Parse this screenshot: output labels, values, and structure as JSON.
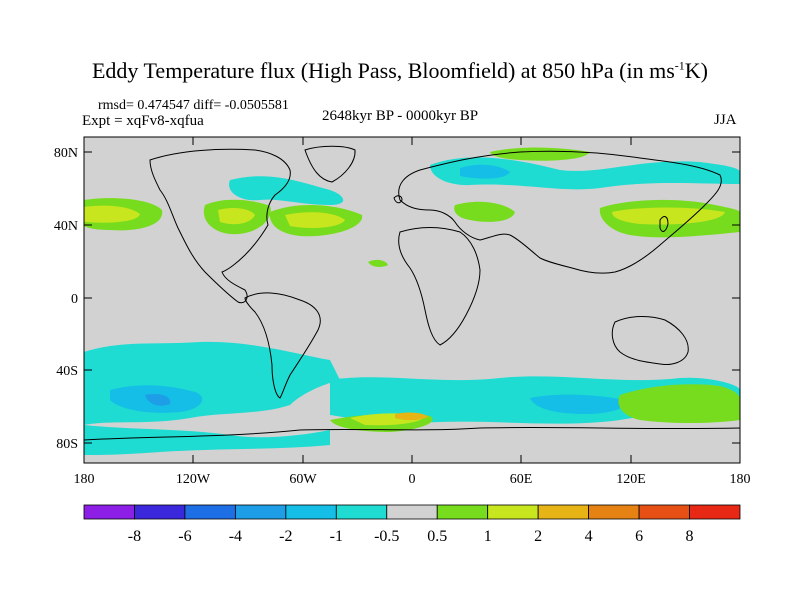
{
  "header": {
    "title_main": "Eddy Temperature flux (High Pass, Bloomfield) at 850 hPa (in ms",
    "title_sup": "-1",
    "title_end": "K)",
    "rmsd_line": "rmsd= 0.474547 diff= -0.0505581",
    "expt_line": "Expt = xqFv8-xqfua",
    "period": "2648kyr BP - 0000kyr BP",
    "season": "JJA"
  },
  "axes": {
    "lat_labels": [
      "80N",
      "40N",
      "0",
      "40S",
      "80S"
    ],
    "lon_labels": [
      "180",
      "120W",
      "60W",
      "0",
      "60E",
      "120E",
      "180"
    ]
  },
  "colorbar": {
    "labels": [
      "-8",
      "-6",
      "-4",
      "-2",
      "-1",
      "-0.5",
      "0.5",
      "1",
      "2",
      "4",
      "6",
      "8"
    ],
    "colors": [
      "#8c1ee6",
      "#3c28dc",
      "#1e6ee6",
      "#1e9ee6",
      "#14bee6",
      "#1edcd2",
      "#d2d2d2",
      "#78dc1e",
      "#c8e61e",
      "#e6b414",
      "#e68214",
      "#e65014",
      "#e62814"
    ]
  }
}
